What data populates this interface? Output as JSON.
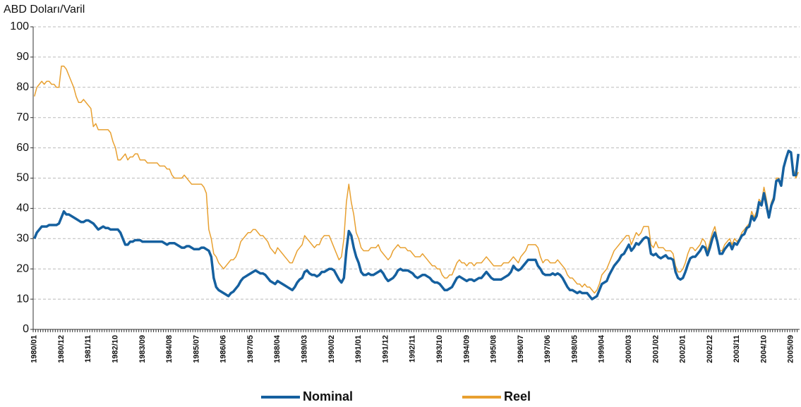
{
  "chart_data": {
    "type": "line",
    "y_label": "ABD Doları/Varil",
    "categories": [
      "1980/01",
      null,
      null,
      null,
      null,
      null,
      null,
      null,
      null,
      null,
      null,
      "1980/12",
      null,
      null,
      null,
      null,
      null,
      null,
      null,
      null,
      null,
      null,
      "1981/11",
      null,
      null,
      null,
      null,
      null,
      null,
      null,
      null,
      null,
      null,
      "1982/10",
      null,
      null,
      null,
      null,
      null,
      null,
      null,
      null,
      null,
      null,
      "1983/09",
      null,
      null,
      null,
      null,
      null,
      null,
      null,
      null,
      null,
      null,
      "1984/08",
      null,
      null,
      null,
      null,
      null,
      null,
      null,
      null,
      null,
      null,
      "1985/07",
      null,
      null,
      null,
      null,
      null,
      null,
      null,
      null,
      null,
      null,
      "1986/06",
      null,
      null,
      null,
      null,
      null,
      null,
      null,
      null,
      null,
      null,
      "1987/05",
      null,
      null,
      null,
      null,
      null,
      null,
      null,
      null,
      null,
      null,
      "1988/04",
      null,
      null,
      null,
      null,
      null,
      null,
      null,
      null,
      null,
      null,
      "1989/03",
      null,
      null,
      null,
      null,
      null,
      null,
      null,
      null,
      null,
      null,
      "1990/02",
      null,
      null,
      null,
      null,
      null,
      null,
      null,
      null,
      null,
      null,
      "1991/01",
      null,
      null,
      null,
      null,
      null,
      null,
      null,
      null,
      null,
      null,
      "1991/12",
      null,
      null,
      null,
      null,
      null,
      null,
      null,
      null,
      null,
      null,
      "1992/11",
      null,
      null,
      null,
      null,
      null,
      null,
      null,
      null,
      null,
      null,
      "1993/10",
      null,
      null,
      null,
      null,
      null,
      null,
      null,
      null,
      null,
      null,
      "1994/09",
      null,
      null,
      null,
      null,
      null,
      null,
      null,
      null,
      null,
      null,
      "1995/08",
      null,
      null,
      null,
      null,
      null,
      null,
      null,
      null,
      null,
      null,
      "1996/07",
      null,
      null,
      null,
      null,
      null,
      null,
      null,
      null,
      null,
      null,
      "1997/06",
      null,
      null,
      null,
      null,
      null,
      null,
      null,
      null,
      null,
      null,
      "1998/05",
      null,
      null,
      null,
      null,
      null,
      null,
      null,
      null,
      null,
      null,
      "1999/04",
      null,
      null,
      null,
      null,
      null,
      null,
      null,
      null,
      null,
      null,
      "2000/03",
      null,
      null,
      null,
      null,
      null,
      null,
      null,
      null,
      null,
      null,
      "2001/02",
      null,
      null,
      null,
      null,
      null,
      null,
      null,
      null,
      null,
      null,
      "2002/01",
      null,
      null,
      null,
      null,
      null,
      null,
      null,
      null,
      null,
      null,
      "2002/12",
      null,
      null,
      null,
      null,
      null,
      null,
      null,
      null,
      null,
      null,
      "2003/11",
      null,
      null,
      null,
      null,
      null,
      null,
      null,
      null,
      null,
      null,
      "2004/10",
      null,
      null,
      null,
      null,
      null,
      null,
      null,
      null,
      null,
      null,
      "2005/09",
      null,
      null,
      null
    ],
    "series": [
      {
        "name": "Reel",
        "color": "#e8a030",
        "width": 1.5,
        "values": [
          77,
          80,
          81,
          82,
          81,
          82,
          82,
          81,
          81,
          80,
          80,
          87,
          87,
          86,
          84,
          82,
          80,
          77,
          75,
          75,
          76,
          75,
          74,
          73,
          67,
          68,
          66,
          66,
          66,
          66,
          66,
          65,
          62,
          60,
          56,
          56,
          57,
          58,
          56,
          57,
          57,
          58,
          58,
          56,
          56,
          56,
          55,
          55,
          55,
          55,
          55,
          54,
          54,
          54,
          53,
          53,
          51,
          50,
          50,
          50,
          50,
          51,
          50,
          49,
          48,
          48,
          48,
          48,
          48,
          47,
          45,
          33,
          30,
          25,
          24,
          22,
          21,
          20,
          21,
          22,
          23,
          23,
          24,
          26,
          29,
          30,
          31,
          32,
          32,
          33,
          33,
          32,
          31,
          31,
          30,
          29,
          27,
          26,
          25,
          27,
          26,
          25,
          24,
          23,
          22,
          22,
          24,
          26,
          27,
          28,
          31,
          30,
          29,
          28,
          27,
          28,
          28,
          30,
          31,
          31,
          31,
          29,
          27,
          25,
          23,
          24,
          30,
          42,
          48,
          42,
          38,
          32,
          30,
          27,
          26,
          26,
          26,
          27,
          27,
          27,
          28,
          26,
          25,
          24,
          23,
          24,
          26,
          27,
          28,
          27,
          27,
          27,
          26,
          26,
          25,
          24,
          24,
          24,
          25,
          24,
          23,
          22,
          21,
          21,
          20,
          20,
          18,
          17,
          17,
          18,
          18,
          20,
          22,
          23,
          22,
          22,
          21,
          22,
          22,
          21,
          22,
          22,
          22,
          23,
          24,
          23,
          22,
          21,
          21,
          21,
          21,
          22,
          22,
          22,
          23,
          24,
          23,
          22,
          24,
          25,
          26,
          28,
          28,
          28,
          28,
          27,
          24,
          22,
          23,
          23,
          22,
          22,
          22,
          23,
          22,
          21,
          20,
          18,
          17,
          17,
          16,
          15,
          15,
          14,
          15,
          14,
          14,
          13,
          12,
          13,
          15,
          18,
          19,
          20,
          22,
          24,
          26,
          27,
          28,
          29,
          30,
          31,
          31,
          28,
          30,
          32,
          31,
          32,
          34,
          34,
          34,
          28,
          27,
          29,
          27,
          27,
          27,
          26,
          26,
          26,
          25,
          21,
          19,
          19,
          20,
          22,
          25,
          27,
          27,
          26,
          27,
          28,
          30,
          29,
          26,
          29,
          32,
          34,
          30,
          26,
          26,
          28,
          29,
          30,
          28,
          30,
          29,
          30,
          32,
          33,
          34,
          35,
          39,
          37,
          39,
          43,
          42,
          47,
          43,
          38,
          42,
          44,
          50,
          50,
          48,
          54,
          57,
          59,
          58,
          53,
          50,
          52
        ]
      },
      {
        "name": "Nominal",
        "color": "#15609f",
        "width": 3.5,
        "values": [
          30,
          32,
          33,
          34,
          34,
          34,
          34.5,
          34.5,
          34.5,
          34.5,
          35,
          37,
          39,
          38,
          38,
          37.5,
          37,
          36.5,
          36,
          35.5,
          35.5,
          36,
          36,
          35.5,
          35,
          34,
          33,
          33.5,
          34,
          33.5,
          33.5,
          33,
          33,
          33,
          33,
          32,
          30,
          28,
          28,
          29,
          29,
          29.5,
          29.5,
          29.5,
          29,
          29,
          29,
          29,
          29,
          29,
          29,
          29,
          29,
          28.5,
          28,
          28.5,
          28.5,
          28.5,
          28,
          27.5,
          27,
          27,
          27.5,
          27.5,
          27,
          26.5,
          26.5,
          26.5,
          27,
          27,
          26.5,
          26,
          24,
          17,
          14,
          13,
          12.5,
          12,
          11.5,
          11,
          12,
          12.5,
          13.5,
          14.5,
          16,
          17,
          17.5,
          18,
          18.5,
          19,
          19.5,
          19,
          18.5,
          18.5,
          18,
          17,
          16,
          15.5,
          15,
          16,
          15.5,
          15,
          14.5,
          14,
          13.5,
          13,
          14,
          15.5,
          16.5,
          17,
          19,
          19.5,
          18.5,
          18,
          18,
          17.5,
          18,
          19,
          19,
          19.5,
          20,
          20,
          19.5,
          18,
          16.5,
          15.5,
          17,
          26,
          32.5,
          31,
          27,
          24,
          22,
          19,
          18,
          18,
          18.5,
          18,
          18,
          18.5,
          19,
          19.5,
          18.5,
          17,
          16,
          16.5,
          17,
          18,
          19.5,
          20,
          19.5,
          19.5,
          19.5,
          19,
          18.5,
          17.5,
          17,
          17.5,
          18,
          18,
          17.5,
          17,
          16,
          15.5,
          15.5,
          15,
          14,
          13,
          13,
          13.5,
          14,
          15.5,
          17,
          17.5,
          17,
          16.5,
          16,
          16.5,
          16.5,
          16,
          16.5,
          17,
          17,
          18,
          19,
          18,
          17,
          16.5,
          16.5,
          16.5,
          16.5,
          17,
          17.5,
          18,
          19,
          21,
          20,
          19.5,
          20,
          21,
          22,
          23,
          23,
          23,
          23,
          21,
          20,
          18.5,
          18,
          18,
          18,
          18.5,
          18,
          18.5,
          18,
          17,
          15.5,
          14,
          13,
          13,
          12.5,
          12,
          12.5,
          12,
          12,
          12,
          11,
          10,
          10.5,
          11,
          13,
          15,
          15.5,
          16,
          18,
          19.5,
          21,
          22,
          23,
          24.5,
          25,
          26.5,
          28,
          26,
          27,
          28.5,
          28,
          29,
          30,
          30.5,
          30,
          25,
          24.5,
          25,
          24,
          23.5,
          24,
          24.5,
          23.5,
          23.5,
          23,
          19,
          17,
          16.5,
          17,
          19,
          21.5,
          23.5,
          24,
          24,
          25,
          26,
          27.5,
          27,
          24.5,
          27,
          30,
          32,
          29,
          25,
          25,
          26.5,
          27.5,
          28.5,
          26.5,
          28.5,
          28,
          29.5,
          31,
          31.5,
          33.5,
          34,
          37.5,
          36,
          37.5,
          42,
          41,
          45,
          41,
          37,
          41,
          43,
          49,
          49.5,
          47.5,
          53.5,
          56.5,
          59,
          58.5,
          51,
          51,
          58
        ]
      }
    ],
    "legend_order": [
      "Nominal",
      "Reel"
    ],
    "ylim": [
      0,
      100
    ],
    "yticks": [
      0,
      10,
      20,
      30,
      40,
      50,
      60,
      70,
      80,
      90,
      100
    ],
    "grid": true
  }
}
